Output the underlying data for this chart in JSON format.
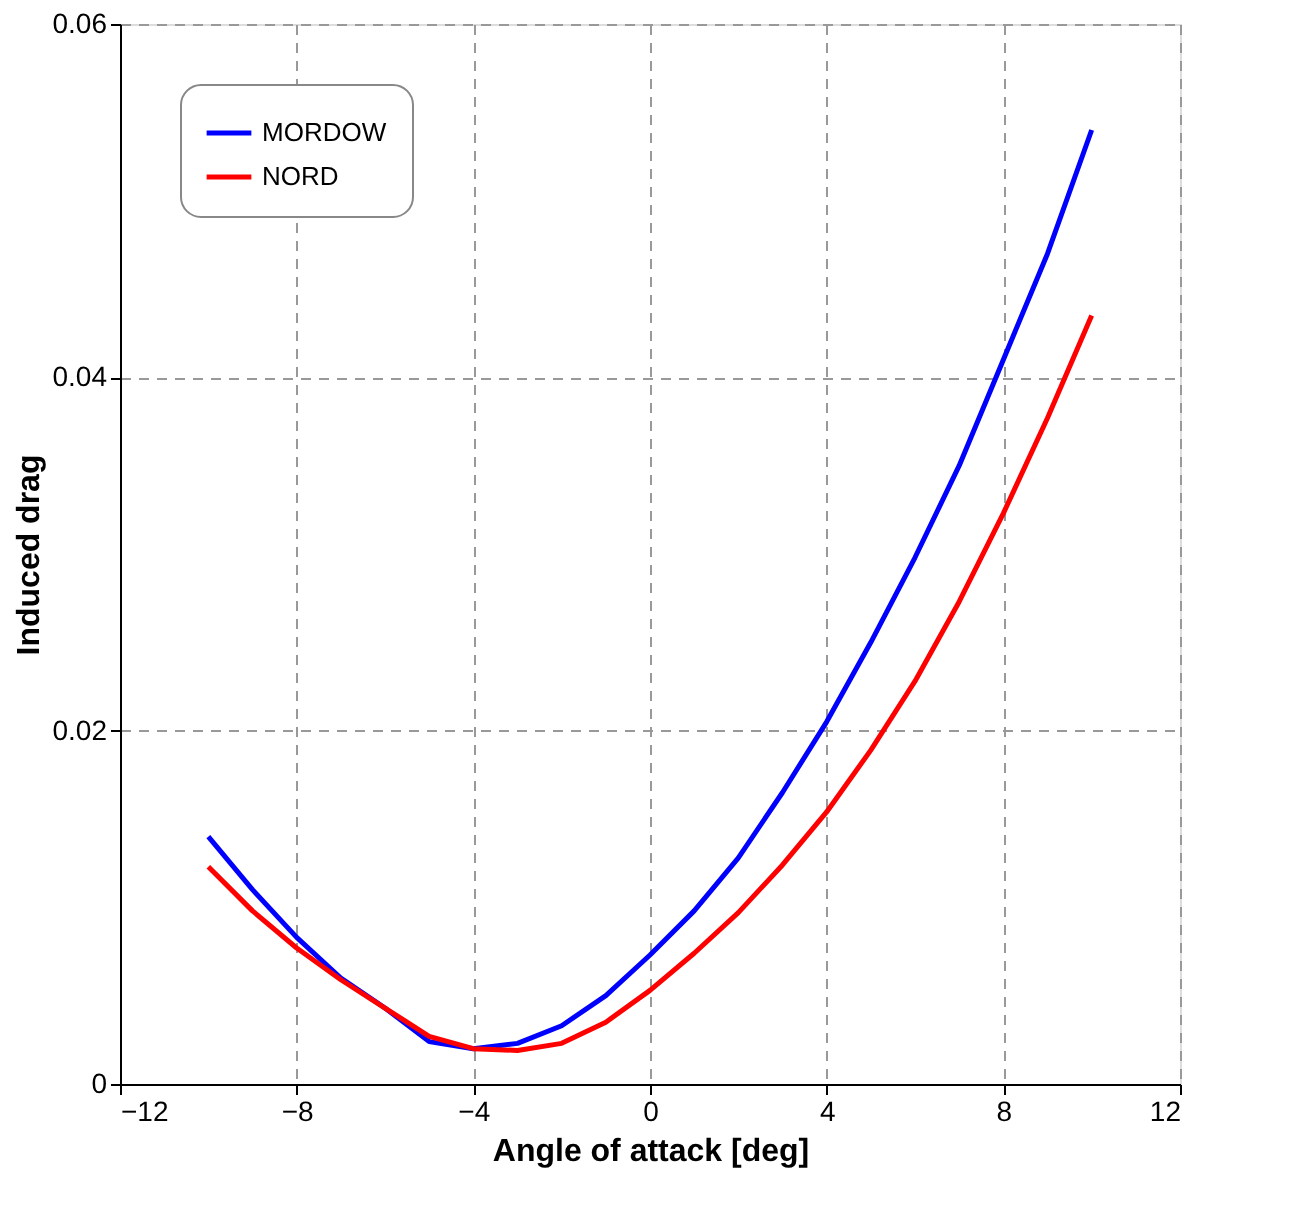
{
  "chart_data": {
    "type": "line",
    "xlabel": "Angle of attack [deg]",
    "ylabel": "Induced drag",
    "x": [
      -10,
      -9,
      -8,
      -7,
      -6,
      -5,
      -4,
      -3,
      -2,
      -1,
      0,
      1,
      2,
      3,
      4,
      5,
      6,
      7,
      8,
      9,
      10
    ],
    "series": [
      {
        "name": "MORDOW",
        "color": "#0000ff",
        "values": [
          0.014,
          0.011,
          0.0083,
          0.006,
          0.0043,
          0.0024,
          0.002,
          0.0023,
          0.0033,
          0.005,
          0.0073,
          0.0098,
          0.0128,
          0.0165,
          0.0205,
          0.025,
          0.0298,
          0.035,
          0.041,
          0.047,
          0.054
        ]
      },
      {
        "name": "NORD",
        "color": "#ff0000",
        "values": [
          0.0123,
          0.0098,
          0.0077,
          0.0059,
          0.0043,
          0.0027,
          0.002,
          0.0019,
          0.0023,
          0.0035,
          0.0053,
          0.0074,
          0.0097,
          0.0124,
          0.0154,
          0.0189,
          0.0228,
          0.0273,
          0.0323,
          0.0377,
          0.0435
        ]
      }
    ],
    "xlim": [
      -12,
      12
    ],
    "xticks": [
      -12,
      -8,
      -4,
      0,
      4,
      8,
      12
    ],
    "ylim": [
      0,
      0.06
    ],
    "yticks": [
      0,
      0.02,
      0.04,
      0.06
    ],
    "grid": true,
    "legend": "top left",
    "marker": "none",
    "line_style": "solid"
  }
}
